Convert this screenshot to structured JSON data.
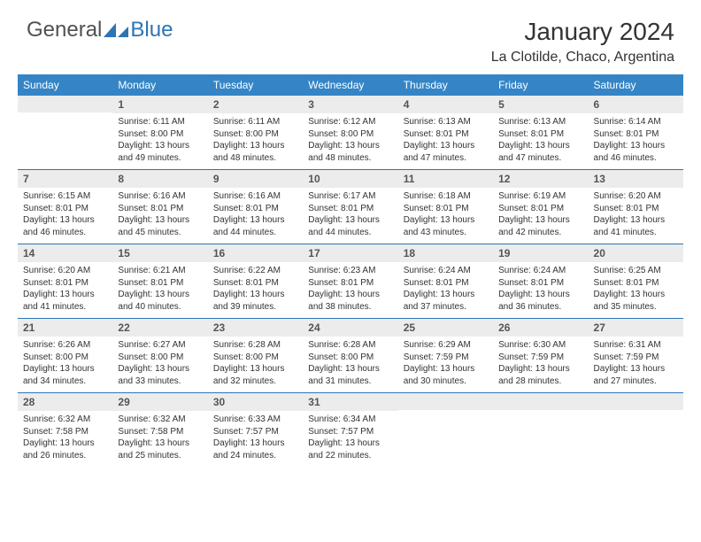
{
  "logo": {
    "text_part1": "General",
    "text_part2": "Blue"
  },
  "title": "January 2024",
  "location": "La Clotilde, Chaco, Argentina",
  "colors": {
    "header_bg": "#3585c6",
    "header_text": "#ffffff",
    "daynum_bg": "#ececec",
    "daynum_text": "#555555",
    "body_text": "#333333",
    "week_border": "#2d74b5",
    "logo_gray": "#52514d",
    "logo_blue": "#2d74b5"
  },
  "day_names": [
    "Sunday",
    "Monday",
    "Tuesday",
    "Wednesday",
    "Thursday",
    "Friday",
    "Saturday"
  ],
  "weeks": [
    [
      {
        "empty": true
      },
      {
        "day": "1",
        "sunrise": "Sunrise: 6:11 AM",
        "sunset": "Sunset: 8:00 PM",
        "daylight": "Daylight: 13 hours and 49 minutes."
      },
      {
        "day": "2",
        "sunrise": "Sunrise: 6:11 AM",
        "sunset": "Sunset: 8:00 PM",
        "daylight": "Daylight: 13 hours and 48 minutes."
      },
      {
        "day": "3",
        "sunrise": "Sunrise: 6:12 AM",
        "sunset": "Sunset: 8:00 PM",
        "daylight": "Daylight: 13 hours and 48 minutes."
      },
      {
        "day": "4",
        "sunrise": "Sunrise: 6:13 AM",
        "sunset": "Sunset: 8:01 PM",
        "daylight": "Daylight: 13 hours and 47 minutes."
      },
      {
        "day": "5",
        "sunrise": "Sunrise: 6:13 AM",
        "sunset": "Sunset: 8:01 PM",
        "daylight": "Daylight: 13 hours and 47 minutes."
      },
      {
        "day": "6",
        "sunrise": "Sunrise: 6:14 AM",
        "sunset": "Sunset: 8:01 PM",
        "daylight": "Daylight: 13 hours and 46 minutes."
      }
    ],
    [
      {
        "day": "7",
        "sunrise": "Sunrise: 6:15 AM",
        "sunset": "Sunset: 8:01 PM",
        "daylight": "Daylight: 13 hours and 46 minutes."
      },
      {
        "day": "8",
        "sunrise": "Sunrise: 6:16 AM",
        "sunset": "Sunset: 8:01 PM",
        "daylight": "Daylight: 13 hours and 45 minutes."
      },
      {
        "day": "9",
        "sunrise": "Sunrise: 6:16 AM",
        "sunset": "Sunset: 8:01 PM",
        "daylight": "Daylight: 13 hours and 44 minutes."
      },
      {
        "day": "10",
        "sunrise": "Sunrise: 6:17 AM",
        "sunset": "Sunset: 8:01 PM",
        "daylight": "Daylight: 13 hours and 44 minutes."
      },
      {
        "day": "11",
        "sunrise": "Sunrise: 6:18 AM",
        "sunset": "Sunset: 8:01 PM",
        "daylight": "Daylight: 13 hours and 43 minutes."
      },
      {
        "day": "12",
        "sunrise": "Sunrise: 6:19 AM",
        "sunset": "Sunset: 8:01 PM",
        "daylight": "Daylight: 13 hours and 42 minutes."
      },
      {
        "day": "13",
        "sunrise": "Sunrise: 6:20 AM",
        "sunset": "Sunset: 8:01 PM",
        "daylight": "Daylight: 13 hours and 41 minutes."
      }
    ],
    [
      {
        "day": "14",
        "sunrise": "Sunrise: 6:20 AM",
        "sunset": "Sunset: 8:01 PM",
        "daylight": "Daylight: 13 hours and 41 minutes."
      },
      {
        "day": "15",
        "sunrise": "Sunrise: 6:21 AM",
        "sunset": "Sunset: 8:01 PM",
        "daylight": "Daylight: 13 hours and 40 minutes."
      },
      {
        "day": "16",
        "sunrise": "Sunrise: 6:22 AM",
        "sunset": "Sunset: 8:01 PM",
        "daylight": "Daylight: 13 hours and 39 minutes."
      },
      {
        "day": "17",
        "sunrise": "Sunrise: 6:23 AM",
        "sunset": "Sunset: 8:01 PM",
        "daylight": "Daylight: 13 hours and 38 minutes."
      },
      {
        "day": "18",
        "sunrise": "Sunrise: 6:24 AM",
        "sunset": "Sunset: 8:01 PM",
        "daylight": "Daylight: 13 hours and 37 minutes."
      },
      {
        "day": "19",
        "sunrise": "Sunrise: 6:24 AM",
        "sunset": "Sunset: 8:01 PM",
        "daylight": "Daylight: 13 hours and 36 minutes."
      },
      {
        "day": "20",
        "sunrise": "Sunrise: 6:25 AM",
        "sunset": "Sunset: 8:01 PM",
        "daylight": "Daylight: 13 hours and 35 minutes."
      }
    ],
    [
      {
        "day": "21",
        "sunrise": "Sunrise: 6:26 AM",
        "sunset": "Sunset: 8:00 PM",
        "daylight": "Daylight: 13 hours and 34 minutes."
      },
      {
        "day": "22",
        "sunrise": "Sunrise: 6:27 AM",
        "sunset": "Sunset: 8:00 PM",
        "daylight": "Daylight: 13 hours and 33 minutes."
      },
      {
        "day": "23",
        "sunrise": "Sunrise: 6:28 AM",
        "sunset": "Sunset: 8:00 PM",
        "daylight": "Daylight: 13 hours and 32 minutes."
      },
      {
        "day": "24",
        "sunrise": "Sunrise: 6:28 AM",
        "sunset": "Sunset: 8:00 PM",
        "daylight": "Daylight: 13 hours and 31 minutes."
      },
      {
        "day": "25",
        "sunrise": "Sunrise: 6:29 AM",
        "sunset": "Sunset: 7:59 PM",
        "daylight": "Daylight: 13 hours and 30 minutes."
      },
      {
        "day": "26",
        "sunrise": "Sunrise: 6:30 AM",
        "sunset": "Sunset: 7:59 PM",
        "daylight": "Daylight: 13 hours and 28 minutes."
      },
      {
        "day": "27",
        "sunrise": "Sunrise: 6:31 AM",
        "sunset": "Sunset: 7:59 PM",
        "daylight": "Daylight: 13 hours and 27 minutes."
      }
    ],
    [
      {
        "day": "28",
        "sunrise": "Sunrise: 6:32 AM",
        "sunset": "Sunset: 7:58 PM",
        "daylight": "Daylight: 13 hours and 26 minutes."
      },
      {
        "day": "29",
        "sunrise": "Sunrise: 6:32 AM",
        "sunset": "Sunset: 7:58 PM",
        "daylight": "Daylight: 13 hours and 25 minutes."
      },
      {
        "day": "30",
        "sunrise": "Sunrise: 6:33 AM",
        "sunset": "Sunset: 7:57 PM",
        "daylight": "Daylight: 13 hours and 24 minutes."
      },
      {
        "day": "31",
        "sunrise": "Sunrise: 6:34 AM",
        "sunset": "Sunset: 7:57 PM",
        "daylight": "Daylight: 13 hours and 22 minutes."
      },
      {
        "empty": true
      },
      {
        "empty": true
      },
      {
        "empty": true
      }
    ]
  ]
}
